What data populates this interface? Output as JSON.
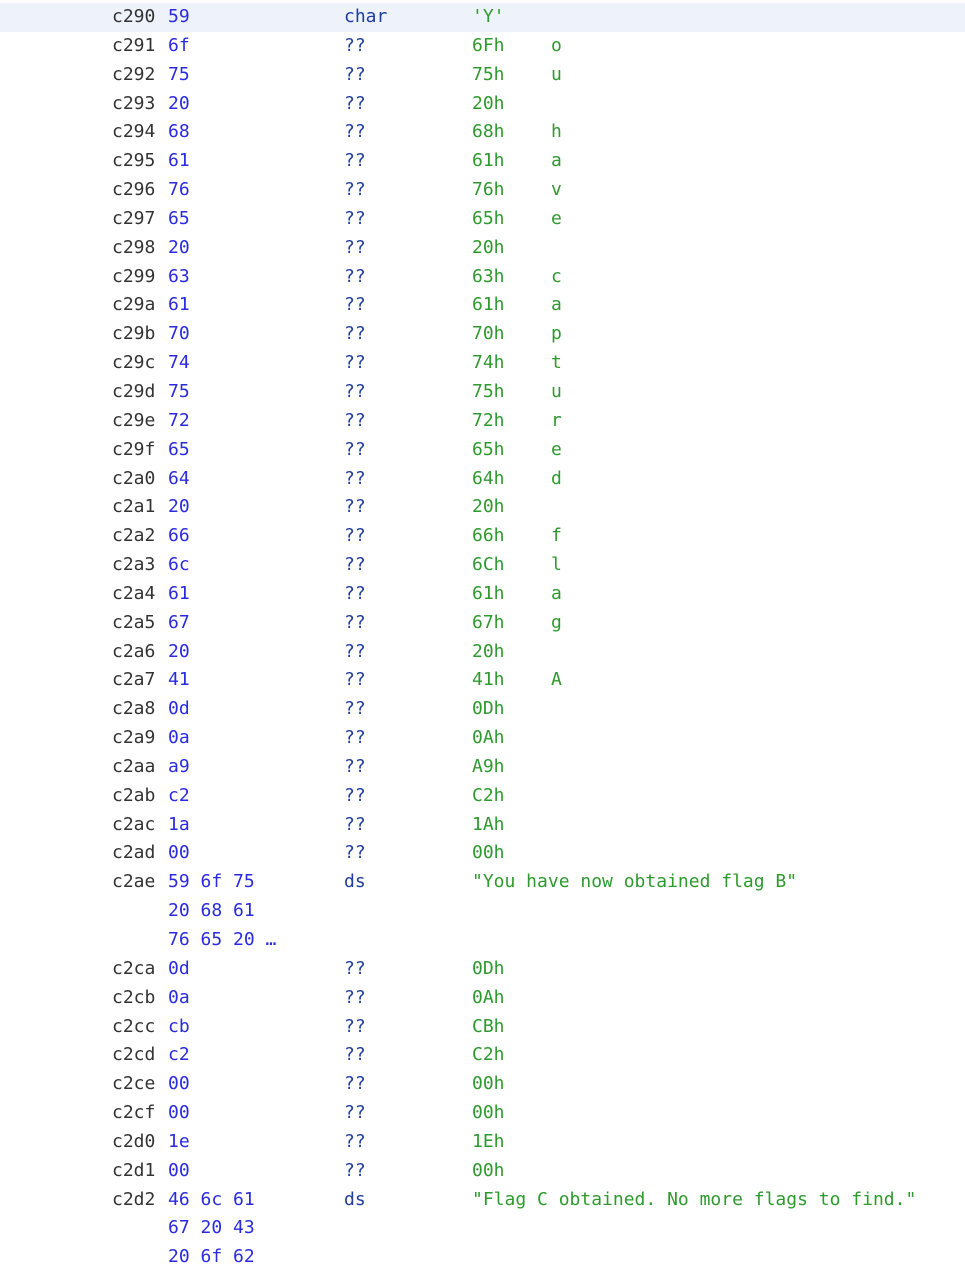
{
  "listing": {
    "rows": [
      {
        "addr": "c290",
        "bytes": "59",
        "mnemonic": "char",
        "operand": "'Y'",
        "char": "",
        "selected": true
      },
      {
        "addr": "c291",
        "bytes": "6f",
        "mnemonic": "??",
        "operand": "6Fh",
        "char": "o"
      },
      {
        "addr": "c292",
        "bytes": "75",
        "mnemonic": "??",
        "operand": "75h",
        "char": "u"
      },
      {
        "addr": "c293",
        "bytes": "20",
        "mnemonic": "??",
        "operand": "20h",
        "char": ""
      },
      {
        "addr": "c294",
        "bytes": "68",
        "mnemonic": "??",
        "operand": "68h",
        "char": "h"
      },
      {
        "addr": "c295",
        "bytes": "61",
        "mnemonic": "??",
        "operand": "61h",
        "char": "a"
      },
      {
        "addr": "c296",
        "bytes": "76",
        "mnemonic": "??",
        "operand": "76h",
        "char": "v"
      },
      {
        "addr": "c297",
        "bytes": "65",
        "mnemonic": "??",
        "operand": "65h",
        "char": "e"
      },
      {
        "addr": "c298",
        "bytes": "20",
        "mnemonic": "??",
        "operand": "20h",
        "char": ""
      },
      {
        "addr": "c299",
        "bytes": "63",
        "mnemonic": "??",
        "operand": "63h",
        "char": "c"
      },
      {
        "addr": "c29a",
        "bytes": "61",
        "mnemonic": "??",
        "operand": "61h",
        "char": "a"
      },
      {
        "addr": "c29b",
        "bytes": "70",
        "mnemonic": "??",
        "operand": "70h",
        "char": "p"
      },
      {
        "addr": "c29c",
        "bytes": "74",
        "mnemonic": "??",
        "operand": "74h",
        "char": "t"
      },
      {
        "addr": "c29d",
        "bytes": "75",
        "mnemonic": "??",
        "operand": "75h",
        "char": "u"
      },
      {
        "addr": "c29e",
        "bytes": "72",
        "mnemonic": "??",
        "operand": "72h",
        "char": "r"
      },
      {
        "addr": "c29f",
        "bytes": "65",
        "mnemonic": "??",
        "operand": "65h",
        "char": "e"
      },
      {
        "addr": "c2a0",
        "bytes": "64",
        "mnemonic": "??",
        "operand": "64h",
        "char": "d"
      },
      {
        "addr": "c2a1",
        "bytes": "20",
        "mnemonic": "??",
        "operand": "20h",
        "char": ""
      },
      {
        "addr": "c2a2",
        "bytes": "66",
        "mnemonic": "??",
        "operand": "66h",
        "char": "f"
      },
      {
        "addr": "c2a3",
        "bytes": "6c",
        "mnemonic": "??",
        "operand": "6Ch",
        "char": "l"
      },
      {
        "addr": "c2a4",
        "bytes": "61",
        "mnemonic": "??",
        "operand": "61h",
        "char": "a"
      },
      {
        "addr": "c2a5",
        "bytes": "67",
        "mnemonic": "??",
        "operand": "67h",
        "char": "g"
      },
      {
        "addr": "c2a6",
        "bytes": "20",
        "mnemonic": "??",
        "operand": "20h",
        "char": ""
      },
      {
        "addr": "c2a7",
        "bytes": "41",
        "mnemonic": "??",
        "operand": "41h",
        "char": "A"
      },
      {
        "addr": "c2a8",
        "bytes": "0d",
        "mnemonic": "??",
        "operand": "0Dh",
        "char": ""
      },
      {
        "addr": "c2a9",
        "bytes": "0a",
        "mnemonic": "??",
        "operand": "0Ah",
        "char": ""
      },
      {
        "addr": "c2aa",
        "bytes": "a9",
        "mnemonic": "??",
        "operand": "A9h",
        "char": ""
      },
      {
        "addr": "c2ab",
        "bytes": "c2",
        "mnemonic": "??",
        "operand": "C2h",
        "char": ""
      },
      {
        "addr": "c2ac",
        "bytes": "1a",
        "mnemonic": "??",
        "operand": "1Ah",
        "char": ""
      },
      {
        "addr": "c2ad",
        "bytes": "00",
        "mnemonic": "??",
        "operand": "00h",
        "char": ""
      },
      {
        "addr": "c2ae",
        "bytes": "59 6f 75",
        "mnemonic": "ds",
        "operand": "\"You have now obtained flag B\"",
        "char": ""
      },
      {
        "addr": "",
        "bytes": "20 68 61",
        "mnemonic": "",
        "operand": "",
        "char": ""
      },
      {
        "addr": "",
        "bytes": "76 65 20 …",
        "mnemonic": "",
        "operand": "",
        "char": ""
      },
      {
        "addr": "c2ca",
        "bytes": "0d",
        "mnemonic": "??",
        "operand": "0Dh",
        "char": ""
      },
      {
        "addr": "c2cb",
        "bytes": "0a",
        "mnemonic": "??",
        "operand": "0Ah",
        "char": ""
      },
      {
        "addr": "c2cc",
        "bytes": "cb",
        "mnemonic": "??",
        "operand": "CBh",
        "char": ""
      },
      {
        "addr": "c2cd",
        "bytes": "c2",
        "mnemonic": "??",
        "operand": "C2h",
        "char": ""
      },
      {
        "addr": "c2ce",
        "bytes": "00",
        "mnemonic": "??",
        "operand": "00h",
        "char": ""
      },
      {
        "addr": "c2cf",
        "bytes": "00",
        "mnemonic": "??",
        "operand": "00h",
        "char": ""
      },
      {
        "addr": "c2d0",
        "bytes": "1e",
        "mnemonic": "??",
        "operand": "1Eh",
        "char": ""
      },
      {
        "addr": "c2d1",
        "bytes": "00",
        "mnemonic": "??",
        "operand": "00h",
        "char": ""
      },
      {
        "addr": "c2d2",
        "bytes": "46 6c 61",
        "mnemonic": "ds",
        "operand": "\"Flag C obtained. No more flags to find.\"",
        "char": ""
      },
      {
        "addr": "",
        "bytes": "67 20 43",
        "mnemonic": "",
        "operand": "",
        "char": ""
      },
      {
        "addr": "",
        "bytes": "20 6f 62",
        "mnemonic": "",
        "operand": "",
        "char": ""
      }
    ]
  },
  "colors": {
    "address": "#333333",
    "bytes": "#2a2ae0",
    "mnemonic": "#1f3c9e",
    "operand": "#2e9a2e",
    "selected_row_bg": "#eef2fb"
  }
}
